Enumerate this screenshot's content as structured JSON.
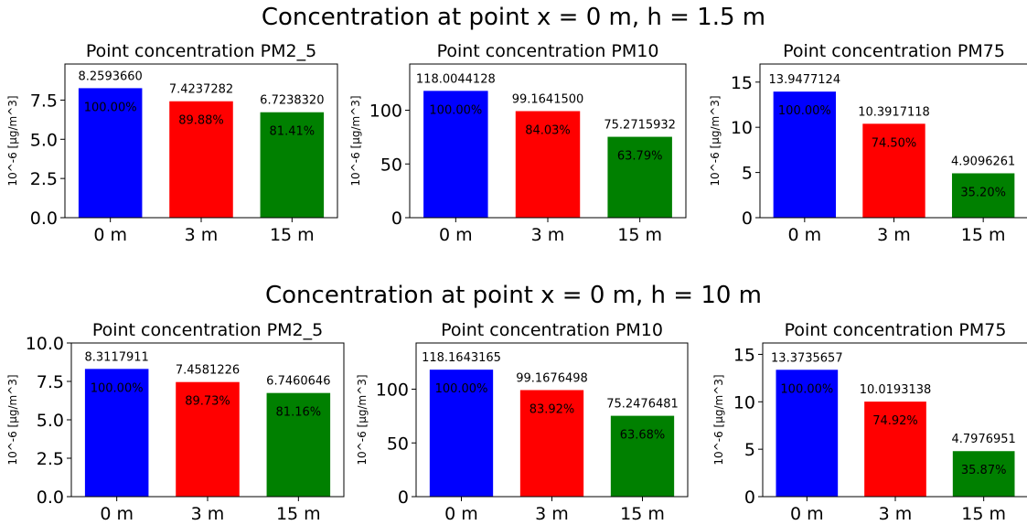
{
  "rows": [
    {
      "title": "Concentration at point x = 0 m, h = 1.5 m"
    },
    {
      "title": "Concentration at point x = 0 m, h = 10 m"
    }
  ],
  "colors": [
    "#0000ff",
    "#ff0000",
    "#008000"
  ],
  "chart_data": [
    {
      "type": "bar",
      "title": "Point concentration PM2_5",
      "ylabel": "10^-6 [µg/m^3]",
      "categories": [
        "0 m",
        "3 m",
        "15 m"
      ],
      "values": [
        8.259366,
        7.4237282,
        6.723832
      ],
      "value_labels": [
        "8.2593660",
        "7.4237282",
        "6.7238320"
      ],
      "percent_labels": [
        "100.00%",
        "89.88%",
        "81.41%"
      ],
      "ylim": [
        0,
        9.8
      ],
      "yticks": [
        0.0,
        2.5,
        5.0,
        7.5
      ],
      "ytick_labels": [
        "0.0",
        "2.5",
        "5.0",
        "7.5"
      ]
    },
    {
      "type": "bar",
      "title": "Point concentration PM10",
      "ylabel": "10^-6 [µg/m^3]",
      "categories": [
        "0 m",
        "3 m",
        "15 m"
      ],
      "values": [
        118.0044128,
        99.16415,
        75.2715932
      ],
      "value_labels": [
        "118.0044128",
        "99.1641500",
        "75.2715932"
      ],
      "percent_labels": [
        "100.00%",
        "84.03%",
        "63.79%"
      ],
      "ylim": [
        0,
        143
      ],
      "yticks": [
        0,
        50,
        100
      ],
      "ytick_labels": [
        "0",
        "50",
        "100"
      ]
    },
    {
      "type": "bar",
      "title": "Point concentration PM75",
      "ylabel": "10^-6 [µg/m^3]",
      "categories": [
        "0 m",
        "3 m",
        "15 m"
      ],
      "values": [
        13.9477124,
        10.3917118,
        4.9096261
      ],
      "value_labels": [
        "13.9477124",
        "10.3917118",
        "4.9096261"
      ],
      "percent_labels": [
        "100.00%",
        "74.50%",
        "35.20%"
      ],
      "ylim": [
        0,
        17
      ],
      "yticks": [
        0,
        5,
        10,
        15
      ],
      "ytick_labels": [
        "0",
        "5",
        "10",
        "15"
      ]
    },
    {
      "type": "bar",
      "title": "Point concentration PM2_5",
      "ylabel": "10^-6 [µg/m^3]",
      "categories": [
        "0 m",
        "3 m",
        "15 m"
      ],
      "values": [
        8.3117911,
        7.4581226,
        6.7460646
      ],
      "value_labels": [
        "8.3117911",
        "7.4581226",
        "6.7460646"
      ],
      "percent_labels": [
        "100.00%",
        "89.73%",
        "81.16%"
      ],
      "ylim": [
        0,
        10.0
      ],
      "yticks": [
        0.0,
        2.5,
        5.0,
        7.5,
        10.0
      ],
      "ytick_labels": [
        "0.0",
        "2.5",
        "5.0",
        "7.5",
        "10.0"
      ]
    },
    {
      "type": "bar",
      "title": "Point concentration PM10",
      "ylabel": "10^-6 [µg/m^3]",
      "categories": [
        "0 m",
        "3 m",
        "15 m"
      ],
      "values": [
        118.1643165,
        99.1676498,
        75.2476481
      ],
      "value_labels": [
        "118.1643165",
        "99.1676498",
        "75.2476481"
      ],
      "percent_labels": [
        "100.00%",
        "83.92%",
        "63.68%"
      ],
      "ylim": [
        0,
        143
      ],
      "yticks": [
        0,
        50,
        100
      ],
      "ytick_labels": [
        "0",
        "50",
        "100"
      ]
    },
    {
      "type": "bar",
      "title": "Point concentration PM75",
      "ylabel": "10^-6 [µg/m^3]",
      "categories": [
        "0 m",
        "3 m",
        "15 m"
      ],
      "values": [
        13.3735657,
        10.0193138,
        4.7976951
      ],
      "value_labels": [
        "13.3735657",
        "10.0193138",
        "4.7976951"
      ],
      "percent_labels": [
        "100.00%",
        "74.92%",
        "35.87%"
      ],
      "ylim": [
        0,
        16.2
      ],
      "yticks": [
        0,
        5,
        10,
        15
      ],
      "ytick_labels": [
        "0",
        "5",
        "10",
        "15"
      ]
    }
  ]
}
